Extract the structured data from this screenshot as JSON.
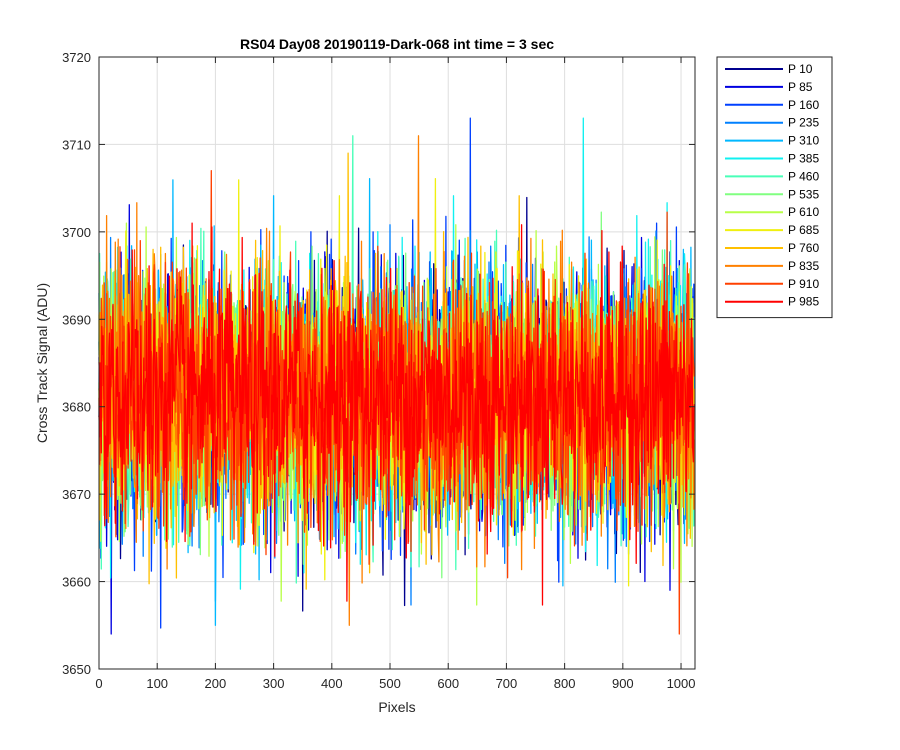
{
  "chart_data": {
    "type": "line",
    "title": "RS04 Day08 20190119-Dark-068 int time = 3 sec",
    "xlabel": "Pixels",
    "ylabel": "Cross Track Signal (ADU)",
    "xlim": [
      0,
      1024
    ],
    "ylim": [
      3650,
      3720
    ],
    "xticks": [
      0,
      100,
      200,
      300,
      400,
      500,
      600,
      700,
      800,
      900,
      1000
    ],
    "yticks": [
      3650,
      3660,
      3670,
      3680,
      3690,
      3700,
      3710,
      3720
    ],
    "grid": true,
    "legend_location": "outside-top-right",
    "noise_model": {
      "mean": 3681,
      "std": 7,
      "min": 3654,
      "max": 3713,
      "points_per_series": 1024
    },
    "series": [
      {
        "name": "P 10",
        "color": "#00008f"
      },
      {
        "name": "P 85",
        "color": "#0000e0"
      },
      {
        "name": "P 160",
        "color": "#0040ff"
      },
      {
        "name": "P 235",
        "color": "#0080ff"
      },
      {
        "name": "P 310",
        "color": "#00b8ff"
      },
      {
        "name": "P 385",
        "color": "#10f0f0"
      },
      {
        "name": "P 460",
        "color": "#48ffb8"
      },
      {
        "name": "P 535",
        "color": "#80ff80"
      },
      {
        "name": "P 610",
        "color": "#b8ff48"
      },
      {
        "name": "P 685",
        "color": "#f0f010"
      },
      {
        "name": "P 760",
        "color": "#ffc000"
      },
      {
        "name": "P 835",
        "color": "#ff8000"
      },
      {
        "name": "P 910",
        "color": "#ff4000"
      },
      {
        "name": "P 985",
        "color": "#ff0000"
      }
    ],
    "annotations": [
      {
        "series": "P 160",
        "x": 638,
        "y": 3713
      },
      {
        "series": "P 385",
        "x": 832,
        "y": 3713
      },
      {
        "series": "P 310",
        "x": 200,
        "y": 3655
      },
      {
        "series": "P 835",
        "x": 430,
        "y": 3655
      },
      {
        "series": "P 910",
        "x": 997,
        "y": 3654
      },
      {
        "series": "P 760",
        "x": 428,
        "y": 3709
      },
      {
        "series": "P 910",
        "x": 193,
        "y": 3707
      }
    ]
  }
}
